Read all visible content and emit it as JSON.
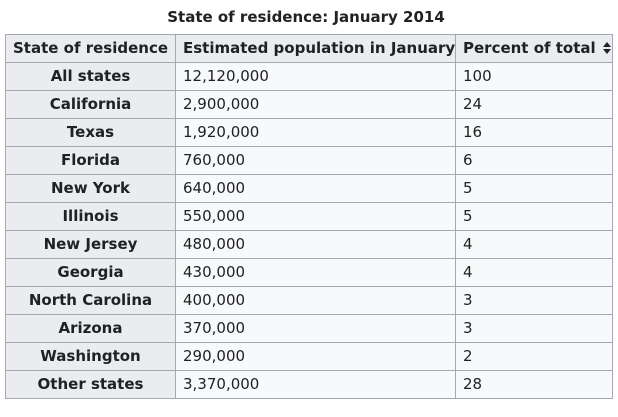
{
  "colors": {
    "page_bg": "#ffffff",
    "header_bg": "#eaecf0",
    "cell_bg": "#f8f9fa",
    "border": "#a2a9b1",
    "text": "#202122"
  },
  "icons": {
    "sort": "up-down-sort-arrows ⇕"
  },
  "chart_data": {
    "type": "table",
    "title": "State of residence: January 2014",
    "columns": [
      "State of residence",
      "Estimated population in January",
      "Percent of total"
    ],
    "rows": [
      [
        "All states",
        "12,120,000",
        "100"
      ],
      [
        "California",
        "2,900,000",
        "24"
      ],
      [
        "Texas",
        "1,920,000",
        "16"
      ],
      [
        "Florida",
        "760,000",
        "6"
      ],
      [
        "New York",
        "640,000",
        "5"
      ],
      [
        "Illinois",
        "550,000",
        "5"
      ],
      [
        "New Jersey",
        "480,000",
        "4"
      ],
      [
        "Georgia",
        "430,000",
        "4"
      ],
      [
        "North Carolina",
        "400,000",
        "3"
      ],
      [
        "Arizona",
        "370,000",
        "3"
      ],
      [
        "Washington",
        "290,000",
        "2"
      ],
      [
        "Other states",
        "3,370,000",
        "28"
      ]
    ]
  }
}
